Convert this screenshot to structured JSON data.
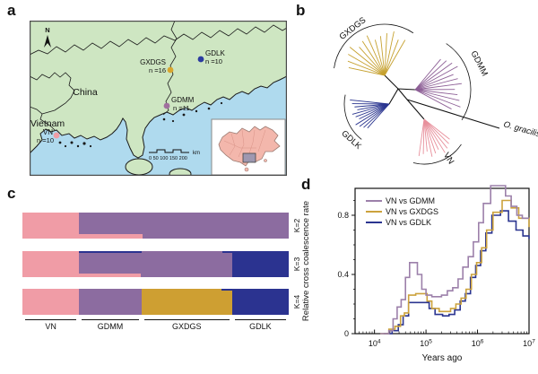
{
  "panels": {
    "a": "a",
    "b": "b",
    "c": "c",
    "d": "d"
  },
  "map": {
    "country_labels": {
      "china": "China",
      "vietnam": "Vietnam"
    },
    "north": "N",
    "scalebar": {
      "numbers": "0  50 100 150 200",
      "unit": "km"
    },
    "colors": {
      "land": "#CEE6C2",
      "sea": "#AFDAEE",
      "inset_china": "#F3B7AC",
      "inset_highlight": "#8F93B0"
    },
    "sites": [
      {
        "name": "GXDGS",
        "n_label": "n =16",
        "color": "#D8A62E"
      },
      {
        "name": "GDLK",
        "n_label": "n =10",
        "color": "#2B3BA0"
      },
      {
        "name": "GDMM",
        "n_label": "n =11",
        "color": "#A0709E"
      },
      {
        "name": "VN",
        "n_label": "n =10",
        "color": "#EF9DA4"
      }
    ]
  },
  "tree": {
    "clades": [
      {
        "name": "GXDGS",
        "color": "#C6A12F"
      },
      {
        "name": "GDMM",
        "color": "#8D5F96"
      },
      {
        "name": "GDLK",
        "color": "#2B3690"
      },
      {
        "name": "VN",
        "color": "#E8909C"
      }
    ],
    "outgroup_label": "O. gracilis"
  },
  "admixture": {
    "k_labels": [
      "K=2",
      "K=3",
      "K=4"
    ],
    "population_labels": [
      "VN",
      "GDMM",
      "GXDGS",
      "GDLK"
    ],
    "population_fracs": [
      0.213,
      0.234,
      0.34,
      0.213
    ],
    "colors": {
      "pink": "#F09CA6",
      "purple": "#8C6CA0",
      "gold": "#CE9F32",
      "navy": "#2B3390"
    },
    "rows": [
      {
        "k": "K=2",
        "blocks": [
          {
            "x0": 0,
            "x1": 0.213,
            "y0": 0,
            "y1": 1,
            "c": "pink"
          },
          {
            "x0": 0.213,
            "x1": 1,
            "y0": 0,
            "y1": 1,
            "c": "purple"
          },
          {
            "x0": 0.213,
            "x1": 0.452,
            "y0": 0.84,
            "y1": 1,
            "c": "pink"
          }
        ]
      },
      {
        "k": "K=3",
        "blocks": [
          {
            "x0": 0,
            "x1": 0.213,
            "y0": 0,
            "y1": 1,
            "c": "pink"
          },
          {
            "x0": 0.213,
            "x1": 0.787,
            "y0": 0,
            "y1": 1,
            "c": "purple"
          },
          {
            "x0": 0.787,
            "x1": 1,
            "y0": 0,
            "y1": 1,
            "c": "navy"
          },
          {
            "x0": 0.213,
            "x1": 0.447,
            "y0": 0,
            "y1": 0.07,
            "c": "navy"
          },
          {
            "x0": 0.213,
            "x1": 0.443,
            "y0": 0.87,
            "y1": 1,
            "c": "pink"
          },
          {
            "x0": 0.752,
            "x1": 0.787,
            "y0": 0,
            "y1": 0.07,
            "c": "navy"
          }
        ]
      },
      {
        "k": "K=4",
        "blocks": [
          {
            "x0": 0,
            "x1": 0.213,
            "y0": 0,
            "y1": 1,
            "c": "pink"
          },
          {
            "x0": 0.213,
            "x1": 0.447,
            "y0": 0,
            "y1": 1,
            "c": "purple"
          },
          {
            "x0": 0.447,
            "x1": 0.787,
            "y0": 0,
            "y1": 1,
            "c": "gold"
          },
          {
            "x0": 0.787,
            "x1": 1,
            "y0": 0,
            "y1": 1,
            "c": "navy"
          },
          {
            "x0": 0.748,
            "x1": 0.787,
            "y0": 0,
            "y1": 0.08,
            "c": "navy"
          }
        ]
      }
    ]
  },
  "chart_data": {
    "type": "line",
    "subtype": "step",
    "xlabel": "Years ago",
    "ylabel": "Relative cross coalescence rate",
    "xscale": "log",
    "xlim": [
      4200,
      10000000
    ],
    "ylim": [
      0,
      1.0
    ],
    "yticks": [
      0,
      0.4,
      0.8
    ],
    "ytick_minor_step": 0.1,
    "xtick_exponents": [
      4,
      5,
      6,
      7
    ],
    "grid": false,
    "legend_position": "top-left",
    "series": [
      {
        "name": "VN vs GDMM",
        "color": "#9C80AA",
        "x": [
          13000,
          19000,
          23000,
          27500,
          33000,
          40000,
          48000,
          68000,
          83000,
          100000,
          130000,
          200000,
          260000,
          330000,
          420000,
          520000,
          660000,
          830000,
          1050000,
          1300000,
          1800000,
          3500000,
          4500000,
          5800000,
          7400000,
          10000000
        ],
        "y": [
          0,
          0.02,
          0.1,
          0.18,
          0.23,
          0.38,
          0.48,
          0.4,
          0.3,
          0.26,
          0.25,
          0.26,
          0.29,
          0.31,
          0.37,
          0.45,
          0.52,
          0.62,
          0.75,
          0.88,
          1.0,
          0.93,
          0.86,
          0.8,
          0.78,
          0.78
        ]
      },
      {
        "name": "VN vs GXDGS",
        "color": "#CCA23C",
        "x": [
          13000,
          19000,
          25000,
          32000,
          38000,
          46000,
          63000,
          83000,
          105000,
          130000,
          180000,
          240000,
          300000,
          380000,
          480000,
          600000,
          760000,
          960000,
          1200000,
          1500000,
          2000000,
          3000000,
          4500000,
          6300000,
          10000000
        ],
        "y": [
          0,
          0.03,
          0.05,
          0.12,
          0.14,
          0.26,
          0.27,
          0.27,
          0.22,
          0.17,
          0.15,
          0.15,
          0.17,
          0.2,
          0.24,
          0.3,
          0.4,
          0.48,
          0.58,
          0.7,
          0.82,
          0.9,
          0.85,
          0.78,
          0.72
        ]
      },
      {
        "name": "VN vs GDLK",
        "color": "#2B3590",
        "x": [
          15000,
          22000,
          29000,
          36000,
          46000,
          66000,
          90000,
          115000,
          150000,
          210000,
          280000,
          360000,
          460000,
          580000,
          730000,
          920000,
          1150000,
          1450000,
          1900000,
          2800000,
          4000000,
          5600000,
          7600000,
          10000000
        ],
        "y": [
          0,
          0.02,
          0.06,
          0.12,
          0.21,
          0.21,
          0.21,
          0.17,
          0.13,
          0.12,
          0.13,
          0.16,
          0.22,
          0.27,
          0.38,
          0.46,
          0.56,
          0.68,
          0.8,
          0.83,
          0.76,
          0.7,
          0.66,
          0.64
        ]
      }
    ]
  }
}
